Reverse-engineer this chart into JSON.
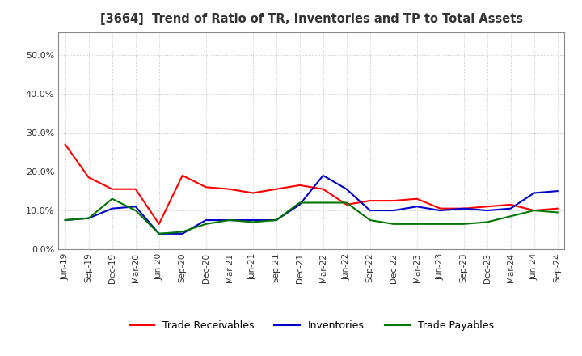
{
  "title": "[3664]  Trend of Ratio of TR, Inventories and TP to Total Assets",
  "x_labels": [
    "Jun-19",
    "Sep-19",
    "Dec-19",
    "Mar-20",
    "Jun-20",
    "Sep-20",
    "Dec-20",
    "Mar-21",
    "Jun-21",
    "Sep-21",
    "Dec-21",
    "Mar-22",
    "Jun-22",
    "Sep-22",
    "Dec-22",
    "Mar-23",
    "Jun-23",
    "Sep-23",
    "Dec-23",
    "Mar-24",
    "Jun-24",
    "Sep-24"
  ],
  "trade_receivables": [
    0.27,
    0.185,
    0.155,
    0.155,
    0.065,
    0.19,
    0.16,
    0.155,
    0.145,
    0.155,
    0.165,
    0.155,
    0.115,
    0.125,
    0.125,
    0.13,
    0.105,
    0.105,
    0.11,
    0.115,
    0.1,
    0.105
  ],
  "inventories": [
    0.075,
    0.08,
    0.105,
    0.11,
    0.04,
    0.04,
    0.075,
    0.075,
    0.075,
    0.075,
    0.115,
    0.19,
    0.155,
    0.1,
    0.1,
    0.11,
    0.1,
    0.105,
    0.1,
    0.105,
    0.145,
    0.15
  ],
  "trade_payables": [
    0.075,
    0.08,
    0.13,
    0.1,
    0.04,
    0.045,
    0.065,
    0.075,
    0.07,
    0.075,
    0.12,
    0.12,
    0.12,
    0.075,
    0.065,
    0.065,
    0.065,
    0.065,
    0.07,
    0.085,
    0.1,
    0.095
  ],
  "tr_color": "#ff0000",
  "inv_color": "#0000cc",
  "tp_color": "#007700",
  "ylim": [
    0.0,
    0.56
  ],
  "yticks": [
    0.0,
    0.1,
    0.2,
    0.3,
    0.4,
    0.5
  ],
  "background_color": "#ffffff",
  "grid_color": "#aaaaaa"
}
